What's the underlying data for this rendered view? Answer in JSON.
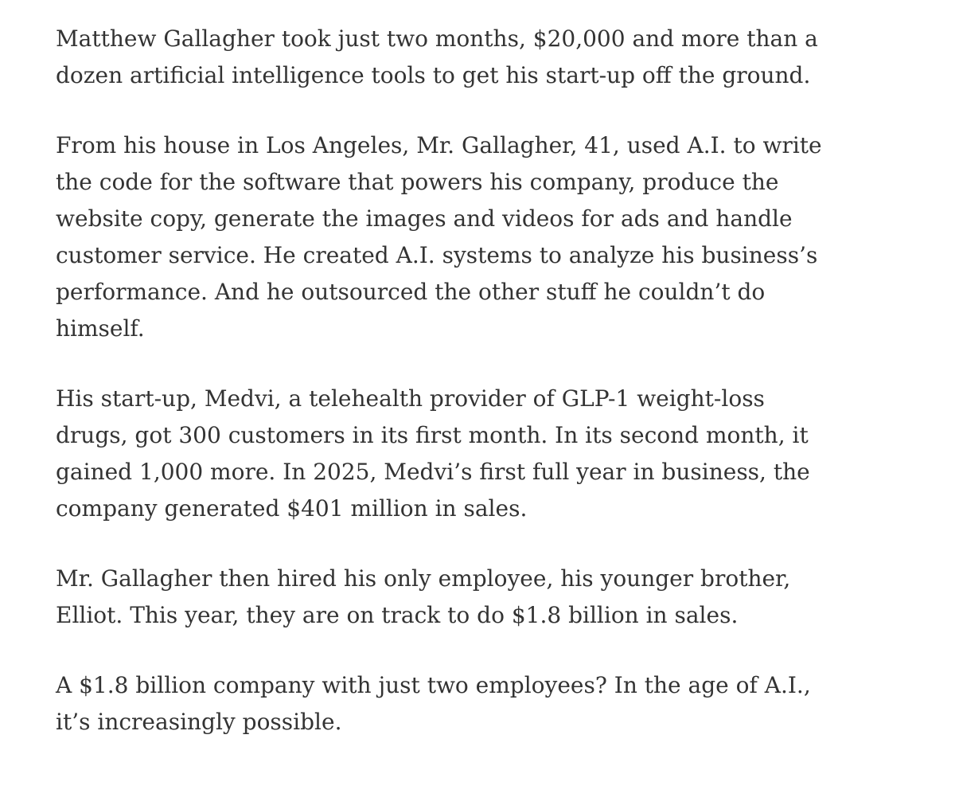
{
  "article": {
    "text_color": "#333333",
    "paragraphs": [
      {
        "lines": [
          "Matthew Gallagher took just two months, $20,000 and more than a",
          "dozen artificial intelligence tools to get his start-up off the ground."
        ]
      },
      {
        "lines": [
          "From his house in Los Angeles, Mr. Gallagher, 41, used A.I. to write",
          "the code for the software that powers his company, produce the",
          "website copy, generate the images and videos for ads and handle",
          "customer service. He created A.I. systems to analyze his business’s",
          "performance. And he outsourced the other stuff he couldn’t do",
          "himself."
        ]
      },
      {
        "lines": [
          "His start-up, Medvi, a telehealth provider of GLP-1 weight-loss",
          "drugs, got 300 customers in its first month. In its second month, it",
          "gained 1,000 more. In 2025, Medvi’s first full year in business, the",
          "company generated $401 million in sales."
        ]
      },
      {
        "lines": [
          "Mr. Gallagher then hired his only employee, his younger brother,",
          "Elliot. This year, they are on track to do $1.8 billion in sales."
        ]
      },
      {
        "lines": [
          "A $1.8 billion company with just two employees? In the age of A.I.,",
          "it’s increasingly possible."
        ]
      }
    ]
  }
}
